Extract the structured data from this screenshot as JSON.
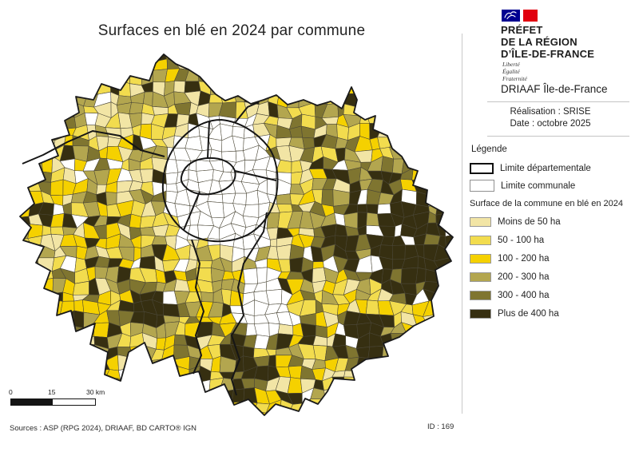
{
  "title": "Surfaces en blé en 2024 par commune",
  "header": {
    "prefet_line1": "PRÉFET",
    "prefet_line2": "DE LA RÉGION",
    "prefet_line3": "D’ÎLE-DE-FRANCE",
    "motto_line1": "Liberté",
    "motto_line2": "Égalité",
    "motto_line3": "Fraternité",
    "org": "DRIAAF Île-de-France",
    "realisation": "Réalisation : SRISE",
    "date": "Date : octobre 2025",
    "flag_blue": "#000091",
    "flag_red": "#E1000F"
  },
  "legend": {
    "title": "Légende",
    "boundary_items": [
      {
        "label": "Limite départementale"
      },
      {
        "label": "Limite communale"
      }
    ],
    "choropleth_title": "Surface de la commune en blé en 2024",
    "classes": [
      {
        "label": "Moins de 50 ha",
        "color": "#F2E5A5"
      },
      {
        "label": "50 - 100 ha",
        "color": "#F2DC4E"
      },
      {
        "label": "100 - 200 ha",
        "color": "#F5D100"
      },
      {
        "label": "200 - 300 ha",
        "color": "#B3A64F"
      },
      {
        "label": "300 - 400 ha",
        "color": "#7F7530"
      },
      {
        "label": "Plus de 400 ha",
        "color": "#362F11"
      }
    ],
    "no_data_color": "#FFFFFF",
    "departement_border_color": "#161616",
    "commune_border_color": "#4a4636"
  },
  "scale_bar": {
    "tick0": "0",
    "tick1": "15",
    "tick2": "30 km"
  },
  "footer": {
    "sources": "Sources : ASP (RPG 2024), DRIAAF, BD CARTO® IGN",
    "id": "ID : 169"
  }
}
